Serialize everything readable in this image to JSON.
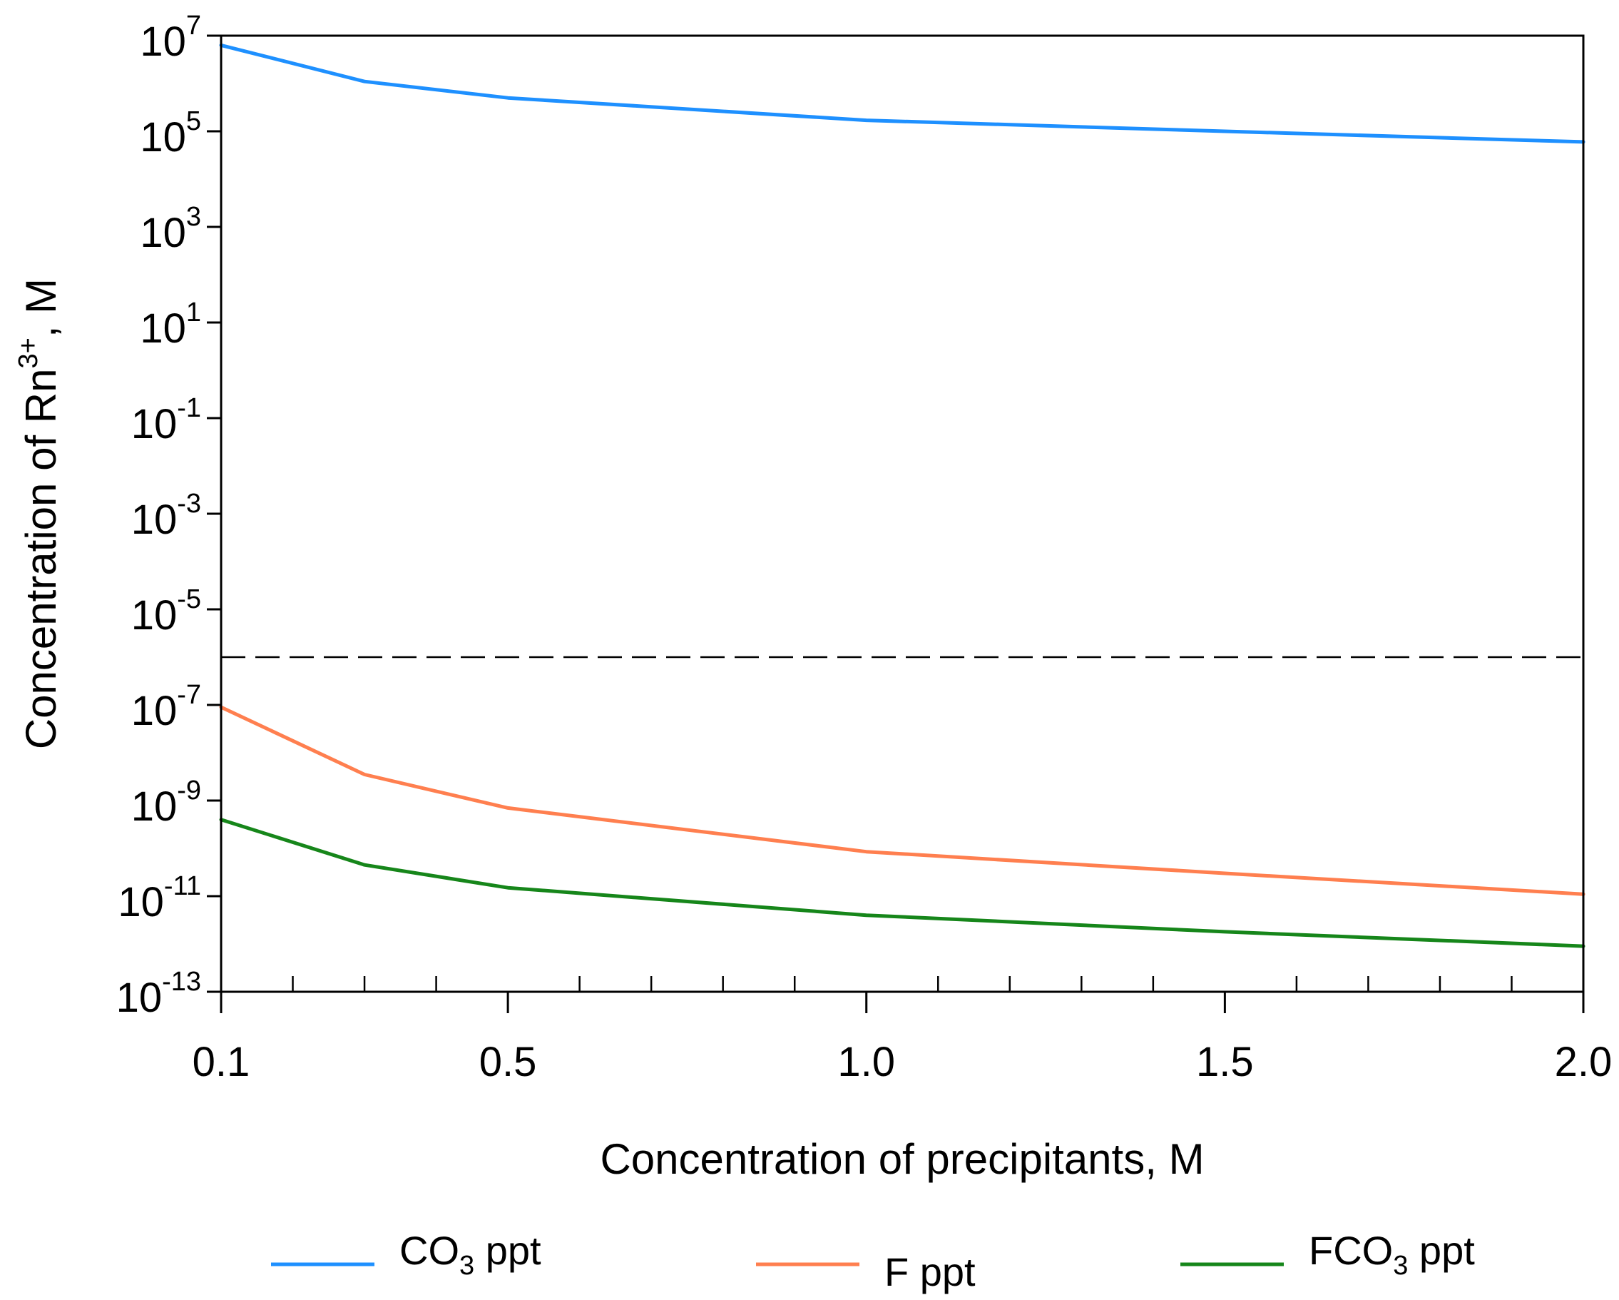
{
  "chart_data": {
    "type": "line",
    "title": "",
    "xlabel": "Concentration of precipitants, M",
    "ylabel": {
      "base": "Concentration of Rn",
      "superscript": "3+",
      "suffix": ", M"
    },
    "y_scale": "log10",
    "xlim": [
      0.1,
      2.0
    ],
    "ylim": [
      1e-13,
      10000000.0
    ],
    "x_ticks": [
      {
        "value": 0.1,
        "label": "0.1"
      },
      {
        "value": 0.5,
        "label": "0.5"
      },
      {
        "value": 1.0,
        "label": "1.0"
      },
      {
        "value": 1.5,
        "label": "1.5"
      },
      {
        "value": 2.0,
        "label": "2.0"
      }
    ],
    "x_minor_ticks": [
      0.2,
      0.3,
      0.4,
      0.6,
      0.7,
      0.8,
      0.9,
      1.1,
      1.2,
      1.3,
      1.4,
      1.6,
      1.7,
      1.8,
      1.9
    ],
    "y_ticks": [
      {
        "exp": 7,
        "base": "10",
        "sup": "7"
      },
      {
        "exp": 5,
        "base": "10",
        "sup": "5"
      },
      {
        "exp": 3,
        "base": "10",
        "sup": "3"
      },
      {
        "exp": 1,
        "base": "10",
        "sup": "1"
      },
      {
        "exp": -1,
        "base": "10",
        "sup": "-1"
      },
      {
        "exp": -3,
        "base": "10",
        "sup": "-3"
      },
      {
        "exp": -5,
        "base": "10",
        "sup": "-5"
      },
      {
        "exp": -7,
        "base": "10",
        "sup": "-7"
      },
      {
        "exp": -9,
        "base": "10",
        "sup": "-9"
      },
      {
        "exp": -11,
        "base": "10",
        "sup": "-11"
      },
      {
        "exp": -13,
        "base": "10",
        "sup": "-13"
      }
    ],
    "reference_line": {
      "y": 1e-06,
      "style": "dashed",
      "color": "#000000"
    },
    "x": [
      0.1,
      0.3,
      0.5,
      1.0,
      1.5,
      2.0
    ],
    "series": [
      {
        "name": "CO3 ppt",
        "legend_main": "CO",
        "legend_sub": "3",
        "legend_rest": " ppt",
        "color": "#1E90FF",
        "values": [
          6300000.0,
          1100000.0,
          500000.0,
          170000.0,
          100000.0,
          60000.0
        ]
      },
      {
        "name": "F ppt",
        "legend_main": "F ppt",
        "legend_sub": "",
        "legend_rest": "",
        "color": "#FF7F4F",
        "values": [
          9e-08,
          3.5e-09,
          7e-10,
          8.5e-11,
          3e-11,
          1.1e-11
        ]
      },
      {
        "name": "FCO3 ppt",
        "legend_main": "FCO",
        "legend_sub": "3",
        "legend_rest": " ppt",
        "color": "#16861A",
        "values": [
          4e-10,
          4.5e-11,
          1.5e-11,
          4e-12,
          1.8e-12,
          9e-13
        ]
      }
    ],
    "legend_position": "bottom"
  }
}
